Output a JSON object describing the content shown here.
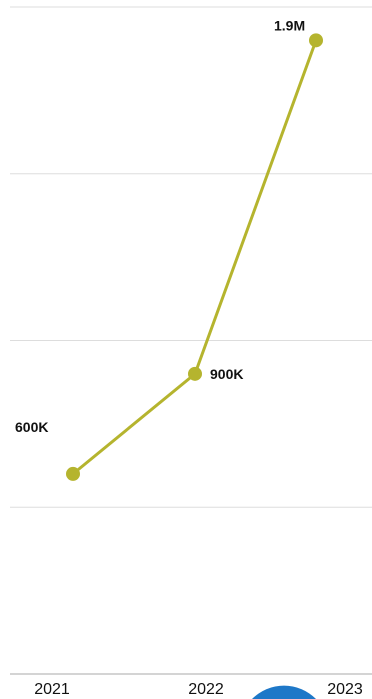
{
  "chart_data": {
    "type": "line",
    "x": [
      "2021",
      "2022",
      "2023"
    ],
    "series": [
      {
        "values": [
          600000,
          900000,
          1900000
        ],
        "data_labels": [
          "600K",
          "900K",
          "1.9M"
        ]
      }
    ],
    "ylim": [
      0,
      2000000
    ],
    "grid": true,
    "color": "#b5b42e",
    "badge_color": "#1e78c8"
  }
}
